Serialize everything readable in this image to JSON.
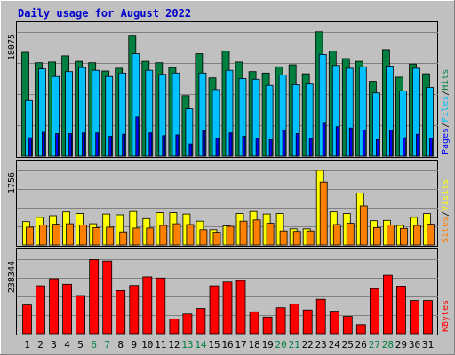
{
  "chart_data": {
    "type": "bar",
    "title": "Daily usage for August 2022",
    "categories": [
      "1",
      "2",
      "3",
      "4",
      "5",
      "6",
      "7",
      "8",
      "9",
      "10",
      "11",
      "12",
      "13",
      "14",
      "15",
      "16",
      "17",
      "18",
      "19",
      "20",
      "21",
      "22",
      "23",
      "24",
      "25",
      "26",
      "27",
      "28",
      "29",
      "30",
      "31"
    ],
    "weekend_days": [
      "6",
      "7",
      "13",
      "14",
      "20",
      "21",
      "27",
      "28"
    ],
    "panels": [
      {
        "name": "traffic",
        "ymax": 18075,
        "ymax_label": "18075",
        "legend": [
          "Pages",
          "/",
          "Files",
          "/",
          "Hits"
        ],
        "series": [
          {
            "name": "Hits",
            "color": "#008040",
            "values": [
              15100,
              13600,
              13700,
              14600,
              13800,
              13600,
              12400,
              12800,
              17600,
              13800,
              13600,
              12900,
              8800,
              14900,
              11400,
              15300,
              13700,
              12300,
              12100,
              13000,
              13300,
              12000,
              18100,
              15300,
              14200,
              13800,
              10900,
              15500,
              11500,
              13400,
              12000
            ]
          },
          {
            "name": "Files",
            "color": "#00c0ff",
            "values": [
              8100,
              12700,
              11600,
              12300,
              12900,
              12500,
              11600,
              12100,
              14900,
              12500,
              11900,
              12100,
              6900,
              12100,
              9700,
              12500,
              11300,
              11200,
              10300,
              11800,
              10400,
              10500,
              14800,
              13200,
              12800,
              13000,
              9200,
              13100,
              9500,
              12800,
              10000
            ]
          },
          {
            "name": "Pages",
            "color": "#0000ff",
            "values": [
              2700,
              3500,
              3300,
              3300,
              3400,
              3400,
              2900,
              3200,
              5700,
              3400,
              3000,
              3100,
              1800,
              3700,
              2600,
              3400,
              2900,
              2600,
              2400,
              3800,
              3300,
              2600,
              4800,
              4300,
              4100,
              3800,
              2400,
              3800,
              2700,
              3200,
              2600
            ]
          }
        ]
      },
      {
        "name": "visitors",
        "ymax": 1756,
        "ymax_label": "1756",
        "legend": [
          "Sites",
          "/",
          "Visits"
        ],
        "series": [
          {
            "name": "Visits",
            "color": "#ffff00",
            "values": [
              550,
              650,
              690,
              780,
              740,
              500,
              730,
              710,
              790,
              620,
              760,
              760,
              730,
              560,
              360,
              450,
              740,
              790,
              730,
              740,
              380,
              380,
              1756,
              780,
              740,
              1220,
              570,
              580,
              460,
              650,
              740
            ]
          },
          {
            "name": "Sites",
            "color": "#ff8000",
            "values": [
              420,
              470,
              490,
              500,
              470,
              410,
              420,
              310,
              400,
              400,
              460,
              500,
              480,
              360,
              300,
              440,
              560,
              590,
              510,
              330,
              320,
              330,
              1480,
              480,
              510,
              920,
              410,
              470,
              390,
              460,
              490
            ]
          }
        ]
      },
      {
        "name": "kbytes",
        "ymax": 238344,
        "ymax_label": "238344",
        "legend": [
          "KBytes"
        ],
        "series": [
          {
            "name": "KBytes",
            "color": "#ff0000",
            "values": [
              92000,
              153000,
              176000,
              158000,
              122000,
              237000,
              232000,
              138000,
              154000,
              182000,
              178000,
              47000,
              63000,
              81000,
              153000,
              165000,
              170000,
              70000,
              53000,
              83000,
              95000,
              76000,
              110000,
              72000,
              55000,
              29000,
              144000,
              187000,
              152000,
              106000,
              106000
            ]
          }
        ]
      }
    ],
    "colors": {
      "background": "#c0c0c0",
      "plot_bg": "#c0c0c0",
      "grid": "#808080",
      "title": "#0000cc",
      "weekday_label": "#000000",
      "weekend_label": "#008040"
    }
  }
}
